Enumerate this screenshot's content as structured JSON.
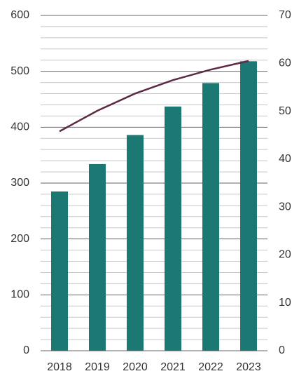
{
  "chart_data": {
    "type": "bar-line",
    "categories": [
      "2018",
      "2019",
      "2020",
      "2021",
      "2022",
      "2023"
    ],
    "series": [
      {
        "type": "bar",
        "color": "#1b7872",
        "values": [
          285,
          334,
          386,
          437,
          479,
          518
        ]
      },
      {
        "type": "line",
        "axis": "y2",
        "color": "#5c2a45",
        "values": [
          45.8,
          50.1,
          53.7,
          56.5,
          58.7,
          60.5
        ]
      }
    ],
    "ylim": [
      0,
      600
    ],
    "yticks": [
      0,
      100,
      200,
      300,
      400,
      500,
      600
    ],
    "yminorticks": [
      20,
      40,
      60,
      80,
      120,
      140,
      160,
      180,
      220,
      240,
      260,
      280,
      320,
      340,
      360,
      380,
      420,
      440,
      460,
      480,
      520,
      540,
      560,
      580
    ],
    "y2lim": [
      0,
      70
    ],
    "y2ticks": [
      0,
      10,
      20,
      30,
      40,
      50,
      60,
      70
    ],
    "grid": true
  }
}
